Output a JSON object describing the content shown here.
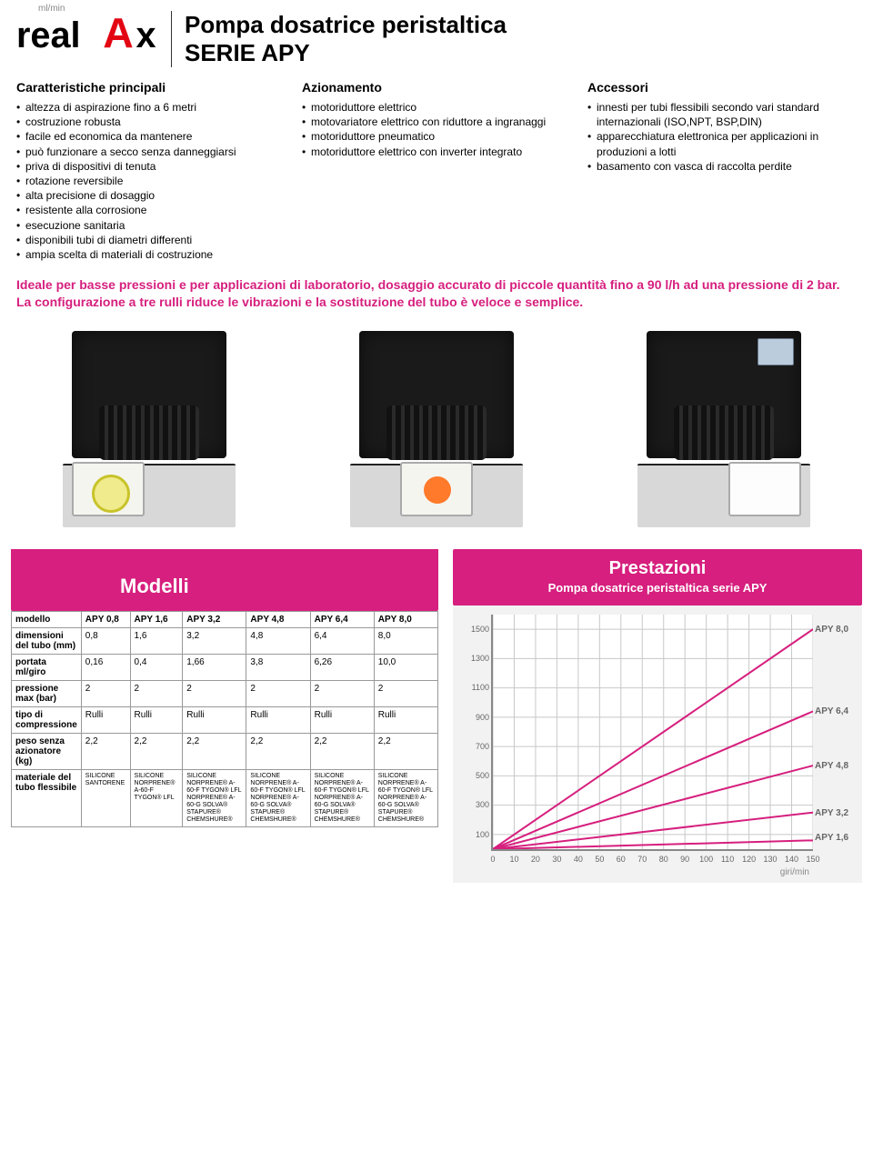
{
  "logo": {
    "brand": "realAx",
    "black": "#000000",
    "red": "#e30613"
  },
  "header": {
    "title1": "Pompa dosatrice peristaltica",
    "title2": "SERIE APY"
  },
  "columns": [
    {
      "title": "Caratteristiche principali",
      "items": [
        "altezza di aspirazione fino a 6 metri",
        "costruzione robusta",
        "facile ed economica da mantenere",
        "può funzionare a secco senza danneggiarsi",
        "priva di dispositivi di tenuta",
        "rotazione reversibile",
        "alta precisione di dosaggio",
        "resistente alla corrosione",
        "esecuzione sanitaria",
        "disponibili tubi di diametri differenti",
        "ampia scelta di materiali di costruzione"
      ]
    },
    {
      "title": "Azionamento",
      "items": [
        "motoriduttore elettrico",
        "motovariatore elettrico con riduttore a ingranaggi",
        "motoriduttore pneumatico",
        "motoriduttore elettrico con inverter integrato"
      ]
    },
    {
      "title": "Accessori",
      "items": [
        "innesti per tubi flessibili secondo vari standard internazionali (ISO,NPT, BSP,DIN)",
        "apparecchiatura elettronica per applicazioni in produzioni a lotti",
        "basamento con vasca di raccolta perdite"
      ]
    }
  ],
  "description_color": "#d61f7e",
  "description": "Ideale per basse pressioni e per applicazioni di laboratorio, dosaggio accurato di piccole quantità fino a 90 l/h ad una pressione di 2 bar. La configurazione a tre rulli riduce le vibrazioni e la sostituzione del tubo è veloce e semplice.",
  "models": {
    "heading": "Modelli",
    "headers": [
      "APY 0,8",
      "APY 1,6",
      "APY 3,2",
      "APY 4,8",
      "APY 6,4",
      "APY 8,0"
    ],
    "rows": [
      {
        "label": "modello",
        "cells": [
          "APY 0,8",
          "APY 1,6",
          "APY 3,2",
          "APY 4,8",
          "APY 6,4",
          "APY 8,0"
        ]
      },
      {
        "label": "dimensioni del tubo (mm)",
        "cells": [
          "0,8",
          "1,6",
          "3,2",
          "4,8",
          "6,4",
          "8,0"
        ]
      },
      {
        "label": "portata ml/giro",
        "cells": [
          "0,16",
          "0,4",
          "1,66",
          "3,8",
          "6,26",
          "10,0"
        ]
      },
      {
        "label": "pressione max (bar)",
        "cells": [
          "2",
          "2",
          "2",
          "2",
          "2",
          "2"
        ]
      },
      {
        "label": "tipo di compressione",
        "cells": [
          "Rulli",
          "Rulli",
          "Rulli",
          "Rulli",
          "Rulli",
          "Rulli"
        ]
      },
      {
        "label": "peso senza azionatore (kg)",
        "cells": [
          "2,2",
          "2,2",
          "2,2",
          "2,2",
          "2,2",
          "2,2"
        ]
      },
      {
        "label": "materiale del tubo flessibile",
        "mat": true,
        "cells": [
          "SILICONE SANTORENE",
          "SILICONE NORPRENE® A-60-F TYGON® LFL",
          "SILICONE NORPRENE® A-60-F TYGON® LFL NORPRENE® A-60-G SOLVA® STAPURE® CHEMSHURE®",
          "SILICONE NORPRENE® A-60-F TYGON® LFL NORPRENE® A-60-G SOLVA® STAPURE® CHEMSHURE®",
          "SILICONE NORPRENE® A-60-F TYGON® LFL NORPRENE® A-60-G SOLVA® STAPURE® CHEMSHURE®",
          "SILICONE NORPRENE® A-60-F TYGON® LFL NORPRENE® A-60-G SOLVA® STAPURE® CHEMSHURE®"
        ]
      }
    ]
  },
  "chart": {
    "heading1": "Prestazioni",
    "heading2": "Pompa dosatrice peristaltica serie APY",
    "y_title": "ml/min",
    "x_title": "giri/min",
    "x_min": 0,
    "x_max": 150,
    "x_step": 10,
    "y_min": 0,
    "y_max": 1600,
    "y_ticks": [
      100,
      300,
      500,
      700,
      900,
      1100,
      1300,
      1500
    ],
    "line_color": "#d61f7e",
    "grid_color": "#c8c8c8",
    "bg": "#f2f2f2",
    "series": [
      {
        "name": "APY 8,0",
        "y_at_xmax": 1500,
        "label_y": 1500
      },
      {
        "name": "APY 6,4",
        "y_at_xmax": 940,
        "label_y": 940
      },
      {
        "name": "APY 4,8",
        "y_at_xmax": 570,
        "label_y": 570
      },
      {
        "name": "APY 3,2",
        "y_at_xmax": 250,
        "label_y": 250
      },
      {
        "name": "APY 1,6",
        "y_at_xmax": 60,
        "label_y": 80
      }
    ]
  }
}
